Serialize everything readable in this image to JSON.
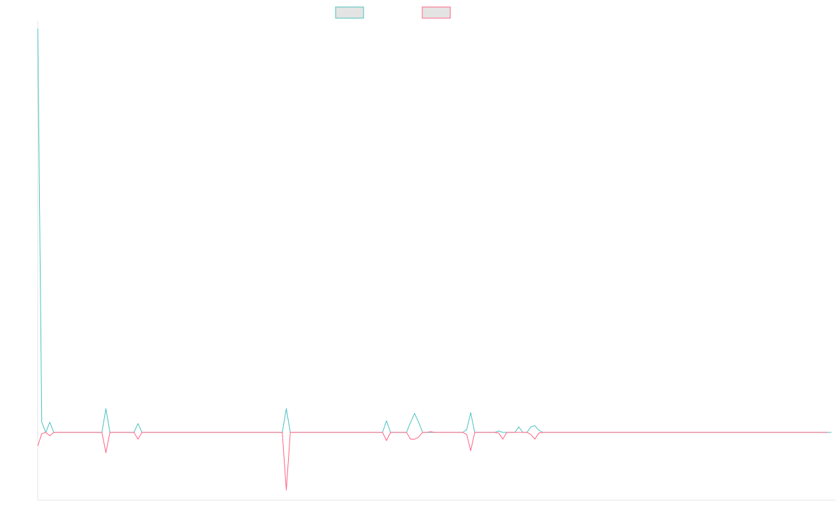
{
  "chart_data": {
    "type": "line",
    "title": "",
    "xlabel": "",
    "ylabel": "",
    "grid": false,
    "legend_position": "top-center",
    "ylim": [
      -10,
      60
    ],
    "x_count": 200,
    "baseline": 0,
    "series": [
      {
        "name": "",
        "color": "#4bc0c0",
        "fill": "#e4e4e4",
        "values": [
          59.5,
          1.5,
          0,
          1.5,
          0,
          0,
          0,
          0,
          0,
          0,
          0,
          0,
          0,
          0,
          0,
          0,
          0,
          3.5,
          0,
          0,
          0,
          0,
          0,
          0,
          0,
          1.3,
          0,
          0,
          0,
          0,
          0,
          0,
          0,
          0,
          0,
          0,
          0,
          0,
          0,
          0,
          0,
          0,
          0,
          0,
          0,
          0,
          0,
          0,
          0,
          0,
          0,
          0,
          0,
          0,
          0,
          0,
          0,
          0,
          0,
          0,
          0,
          0,
          3.5,
          0,
          0,
          0,
          0,
          0,
          0,
          0,
          0,
          0,
          0,
          0,
          0,
          0,
          0,
          0,
          0,
          0,
          0,
          0,
          0,
          0,
          0,
          0,
          0,
          1.7,
          0,
          0,
          0,
          0,
          0,
          1.5,
          2.8,
          1.5,
          0,
          0,
          0,
          0,
          0,
          0,
          0,
          0,
          0,
          0,
          0,
          0.4,
          2.9,
          0,
          0,
          0,
          0,
          0,
          0,
          0.2,
          0,
          0,
          0,
          0,
          0.8,
          0,
          0,
          0.8,
          1,
          0.3,
          0,
          0,
          0,
          0,
          0,
          0,
          0,
          0,
          0,
          0,
          0,
          0,
          0,
          0,
          0,
          0,
          0,
          0,
          0,
          0,
          0,
          0,
          0,
          0,
          0,
          0,
          0,
          0,
          0,
          0,
          0,
          0,
          0,
          0,
          0,
          0,
          0,
          0,
          0,
          0,
          0,
          0,
          0,
          0,
          0,
          0,
          0,
          0,
          0,
          0,
          0,
          0,
          0,
          0,
          0,
          0,
          0,
          0,
          0,
          0,
          0,
          0,
          0,
          0,
          0,
          0,
          0,
          0,
          0,
          0,
          0,
          0,
          0
        ]
      },
      {
        "name": "",
        "color": "#ff6384",
        "fill": "#e4e4e4",
        "values": [
          -2,
          -0.2,
          0,
          -0.5,
          0,
          0,
          0,
          0,
          0,
          0,
          0,
          0,
          0,
          0,
          0,
          0,
          0,
          -3,
          0,
          0,
          0,
          0,
          0,
          0,
          0,
          -1,
          0,
          0,
          0,
          0,
          0,
          0,
          0,
          0,
          0,
          0,
          0,
          0,
          0,
          0,
          0,
          0,
          0,
          0,
          0,
          0,
          0,
          0,
          0,
          0,
          0,
          0,
          0,
          0,
          0,
          0,
          0,
          0,
          0,
          0,
          0,
          0,
          -8.5,
          0,
          0,
          0,
          0,
          0,
          0,
          0,
          0,
          0,
          0,
          0,
          0,
          0,
          0,
          0,
          0,
          0,
          0,
          0,
          0,
          0,
          0,
          0,
          0,
          -1.2,
          0,
          0,
          0,
          0,
          0,
          -1,
          -1,
          -0.7,
          0,
          0,
          0.1,
          0,
          0,
          0,
          0,
          0,
          0,
          0,
          0,
          -0.3,
          -2.7,
          0,
          0,
          0,
          0,
          0,
          0,
          -0.1,
          -1,
          0,
          0,
          0,
          0,
          0,
          0,
          -0.3,
          -1,
          -0.1,
          0,
          0,
          0,
          0,
          0,
          0,
          0,
          0,
          0,
          0,
          0,
          0,
          0,
          0,
          0,
          0,
          0,
          0,
          0,
          0,
          0,
          0,
          0,
          0,
          0,
          0,
          0,
          0,
          0,
          0,
          0,
          0,
          0,
          0,
          0,
          0,
          0,
          0,
          0,
          0,
          0,
          0,
          0,
          0,
          0,
          0,
          0,
          0,
          0,
          0,
          0,
          0,
          0,
          0,
          0,
          0,
          0,
          0,
          0,
          0,
          0,
          0,
          0,
          0,
          0,
          0,
          0,
          0,
          0,
          0,
          0,
          0
        ]
      }
    ]
  }
}
